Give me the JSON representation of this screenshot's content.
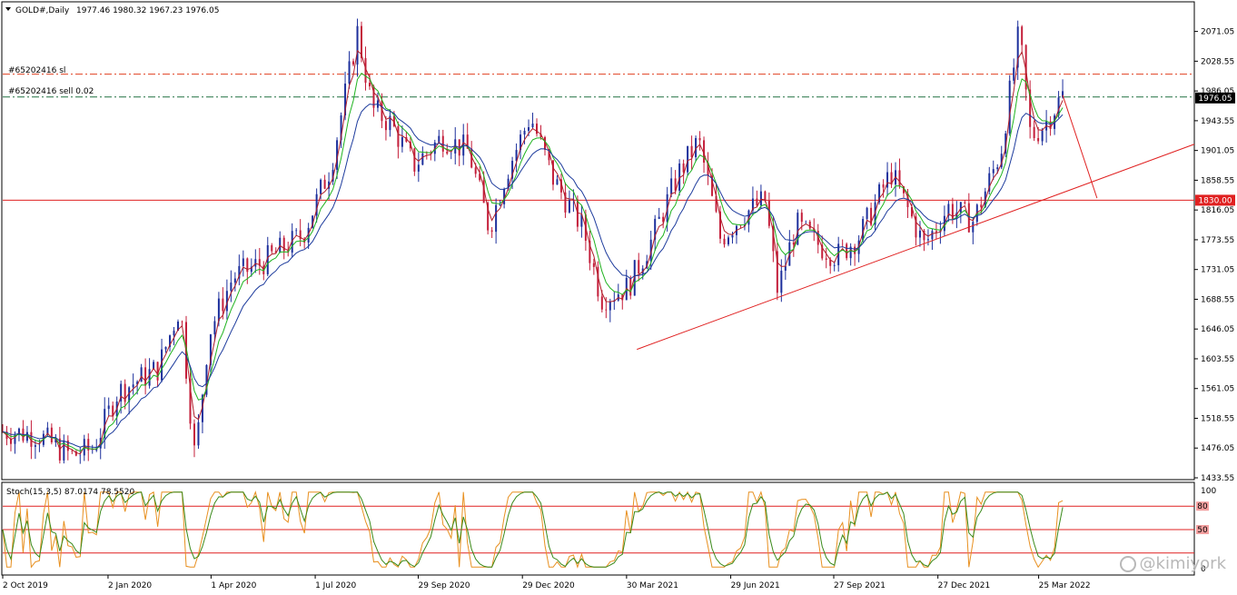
{
  "symbol": {
    "title": "GOLD#,Daily",
    "ohlc": "1977.46 1980.32 1967.23 1976.05"
  },
  "orders": {
    "sl_label": "#65202416 sl",
    "sell_label": "#65202416 sell 0.02"
  },
  "colors": {
    "bull": "#1c2f9c",
    "bear": "#c41e3a",
    "ma_fast": "#b01e2a",
    "ma_mid": "#1fb31f",
    "ma_slow": "#1c3a9c",
    "level": "#e02020",
    "sl_line": "#e04020",
    "entry_line": "#207040",
    "stoch_main": "#e89020",
    "stoch_signal": "#3a8a1a"
  },
  "chart_data": {
    "type": "line",
    "title": "GOLD#,Daily",
    "ohlc": {
      "open": 1977.46,
      "high": 1980.32,
      "low": 1967.23,
      "close": 1976.05
    },
    "ylim": [
      1433.55,
      2090
    ],
    "y_ticks": [
      "2071.05",
      "2028.55",
      "1986.05",
      "1943.55",
      "1901.05",
      "1858.55",
      "1816.05",
      "1773.55",
      "1731.05",
      "1688.55",
      "1646.05",
      "1603.55",
      "1561.05",
      "1518.55",
      "1476.05",
      "1433.55"
    ],
    "x_ticks": [
      "2 Oct 2019",
      "2 Jan 2020",
      "1 Apr 2020",
      "1 Jul 2020",
      "29 Sep 2020",
      "29 Dec 2020",
      "30 Mar 2021",
      "29 Jun 2021",
      "27 Sep 2021",
      "27 Dec 2021",
      "25 Mar 2022"
    ],
    "x_start": "2 Oct 2019",
    "x_end": "8 Aug 2022",
    "price_path": [
      [
        "2 Oct 2019",
        1500
      ],
      [
        "1 Nov 2019",
        1495
      ],
      [
        "1 Dec 2019",
        1465
      ],
      [
        "20 Dec 2019",
        1475
      ],
      [
        "10 Jan 2020",
        1555
      ],
      [
        "15 Feb 2020",
        1590
      ],
      [
        "5 Mar 2020",
        1680
      ],
      [
        "18 Mar 2020",
        1460
      ],
      [
        "30 Mar 2020",
        1640
      ],
      [
        "20 Apr 2020",
        1720
      ],
      [
        "15 May 2020",
        1740
      ],
      [
        "20 Jun 2020",
        1780
      ],
      [
        "15 Jul 2020",
        1880
      ],
      [
        "7 Aug 2020",
        2071
      ],
      [
        "20 Aug 2020",
        1960
      ],
      [
        "5 Sep 2020",
        1940
      ],
      [
        "25 Sep 2020",
        1880
      ],
      [
        "20 Oct 2020",
        1920
      ],
      [
        "12 Nov 2020",
        1900
      ],
      [
        "30 Nov 2020",
        1790
      ],
      [
        "15 Dec 2020",
        1870
      ],
      [
        "5 Jan 2021",
        1950
      ],
      [
        "25 Jan 2021",
        1860
      ],
      [
        "20 Feb 2021",
        1790
      ],
      [
        "8 Mar 2021",
        1690
      ],
      [
        "31 Mar 2021",
        1705
      ],
      [
        "20 Apr 2021",
        1770
      ],
      [
        "15 May 2021",
        1870
      ],
      [
        "1 Jun 2021",
        1915
      ],
      [
        "20 Jun 2021",
        1775
      ],
      [
        "10 Jul 2021",
        1810
      ],
      [
        "29 Jul 2021",
        1830
      ],
      [
        "9 Aug 2021",
        1700
      ],
      [
        "25 Aug 2021",
        1795
      ],
      [
        "15 Sep 2021",
        1765
      ],
      [
        "30 Sep 2021",
        1750
      ],
      [
        "20 Oct 2021",
        1780
      ],
      [
        "16 Nov 2021",
        1870
      ],
      [
        "15 Dec 2021",
        1765
      ],
      [
        "5 Jan 2022",
        1820
      ],
      [
        "27 Jan 2022",
        1800
      ],
      [
        "20 Feb 2022",
        1900
      ],
      [
        "8 Mar 2022",
        2071
      ],
      [
        "18 Mar 2022",
        1920
      ],
      [
        "31 Mar 2022",
        1940
      ],
      [
        "15 Apr 2022",
        1980
      ]
    ],
    "projection_path": [
      [
        "15 Apr 2022",
        1980
      ],
      [
        "15 May 2022",
        1833
      ]
    ],
    "trendline": [
      [
        "8 Apr 2021",
        1617
      ],
      [
        "8 Aug 2022",
        1910
      ]
    ],
    "series": [
      {
        "name": "",
        "role": "ma_fast"
      },
      {
        "name": "",
        "role": "ma_mid"
      },
      {
        "name": "",
        "role": "ma_slow"
      }
    ],
    "levels": [
      {
        "label": "1830.00",
        "value": 1830.0
      },
      {
        "label": "1976.05",
        "value": 1976.05
      }
    ],
    "order_levels": [
      {
        "label": "#65202416 sl",
        "value": 2010
      },
      {
        "label": "#65202416 sell 0.02",
        "value": 1977.46
      }
    ],
    "stochastic": {
      "title": "Stoch(15,3,5) 87.0174 78.5520",
      "main": 87.0174,
      "signal": 78.552,
      "levels": [
        80,
        50,
        20
      ],
      "level_labels": [
        "80",
        "50"
      ],
      "axis_labels": [
        "100",
        "0"
      ],
      "ylim": [
        0,
        100
      ]
    }
  },
  "watermark": {
    "text": "@kimiyork"
  }
}
